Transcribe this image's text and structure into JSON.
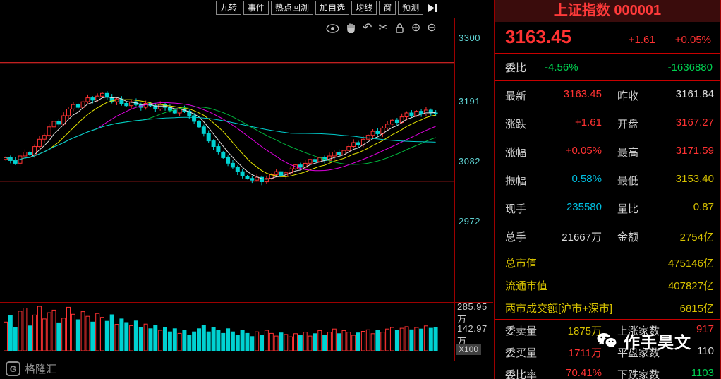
{
  "toolbar": {
    "items": [
      "九转",
      "事件",
      "热点回溯",
      "加自选",
      "均线",
      "窗",
      "预测"
    ]
  },
  "icons": {
    "undo": "↶",
    "scissors": "✂",
    "zoom_in": "⊕",
    "zoom_out": "⊖"
  },
  "axis": {
    "price_ticks": [
      "3300",
      "3191",
      "3082",
      "2972"
    ],
    "volume_ticks": [
      "285.95万",
      "142.97万"
    ],
    "volume_unit": "X100"
  },
  "panel": {
    "title": "上证指数 000001",
    "price": "3163.45",
    "change": "+1.61",
    "change_pct": "+0.05%",
    "weibi": {
      "label": "委比",
      "value": "-4.56%",
      "diff": "-1636880"
    },
    "quote": {
      "last": {
        "label": "最新",
        "value": "3163.45"
      },
      "prevclose": {
        "label": "昨收",
        "value": "3161.84"
      },
      "change": {
        "label": "涨跌",
        "value": "+1.61"
      },
      "open": {
        "label": "开盘",
        "value": "3167.27"
      },
      "changepct": {
        "label": "涨幅",
        "value": "+0.05%"
      },
      "high": {
        "label": "最高",
        "value": "3171.59"
      },
      "amplitude": {
        "label": "振幅",
        "value": "0.58%"
      },
      "low": {
        "label": "最低",
        "value": "3153.40"
      },
      "curvol": {
        "label": "现手",
        "value": "235580"
      },
      "volratio": {
        "label": "量比",
        "value": "0.87"
      },
      "totalvol": {
        "label": "总手",
        "value": "21667万"
      },
      "turnover": {
        "label": "金额",
        "value": "2754亿"
      }
    },
    "caps": [
      {
        "label": "总市值",
        "value": "475146亿"
      },
      {
        "label": "流通市值",
        "value": "407827亿"
      },
      {
        "label": "两市成交额[沪市+深市]",
        "value": "6815亿"
      }
    ],
    "orders": {
      "askvol": {
        "label": "委卖量",
        "value": "1875万"
      },
      "upcount": {
        "label": "上涨家数",
        "value": "917"
      },
      "bidvol": {
        "label": "委买量",
        "value": "1711万"
      },
      "flatcount": {
        "label": "平盘家数",
        "value": "110"
      },
      "bidratio": {
        "label": "委比率",
        "value": "70.41%"
      },
      "downcount": {
        "label": "下跌家数",
        "value": "1103"
      }
    }
  },
  "watermark": {
    "text": "作手昊文"
  },
  "logo": {
    "letter": "G",
    "text": "格隆汇"
  },
  "chart_data": {
    "type": "candlestick",
    "symbol": "上证指数 000001",
    "y_ticks": [
      3300,
      3191,
      3082,
      2972
    ],
    "levels": [
      3255,
      3043
    ],
    "volume_ticks_wan": [
      285.95,
      142.97
    ],
    "last_close": 3163.45,
    "closes": [
      3085,
      3080,
      3075,
      3088,
      3095,
      3090,
      3105,
      3118,
      3125,
      3140,
      3150,
      3145,
      3160,
      3172,
      3180,
      3175,
      3185,
      3192,
      3188,
      3195,
      3200,
      3193,
      3185,
      3190,
      3182,
      3178,
      3185,
      3180,
      3175,
      3182,
      3178,
      3172,
      3180,
      3175,
      3170,
      3165,
      3172,
      3168,
      3160,
      3150,
      3140,
      3128,
      3115,
      3105,
      3095,
      3085,
      3075,
      3068,
      3060,
      3052,
      3048,
      3045,
      3050,
      3042,
      3048,
      3055,
      3060,
      3052,
      3058,
      3065,
      3072,
      3068,
      3075,
      3082,
      3078,
      3085,
      3080,
      3088,
      3095,
      3090,
      3098,
      3105,
      3112,
      3108,
      3118,
      3125,
      3132,
      3128,
      3138,
      3145,
      3152,
      3148,
      3158,
      3165,
      3160,
      3168,
      3163,
      3170,
      3165,
      3163.45
    ],
    "volumes": [
      185,
      225,
      150,
      255,
      275,
      160,
      230,
      286,
      205,
      245,
      262,
      180,
      210,
      280,
      235,
      200,
      252,
      222,
      185,
      240,
      215,
      190,
      232,
      170,
      205,
      182,
      162,
      192,
      152,
      172,
      142,
      162,
      132,
      152,
      122,
      142,
      112,
      132,
      102,
      122,
      142,
      162,
      122,
      152,
      132,
      112,
      142,
      122,
      102,
      132,
      112,
      92,
      122,
      102,
      132,
      112,
      95,
      115,
      105,
      90,
      110,
      100,
      120,
      95,
      110,
      130,
      100,
      120,
      140,
      110,
      130,
      120,
      100,
      115,
      125,
      135,
      110,
      130,
      120,
      140,
      150,
      130,
      145,
      155,
      135,
      150,
      140,
      160,
      145,
      150
    ],
    "ma": [
      {
        "window": 5,
        "color": "#e0e0e0"
      },
      {
        "window": 10,
        "color": "#e6e600"
      },
      {
        "window": 20,
        "color": "#e000e0"
      },
      {
        "window": 30,
        "color": "#00b43c"
      },
      {
        "window": 60,
        "color": "#00cdcd"
      }
    ]
  }
}
